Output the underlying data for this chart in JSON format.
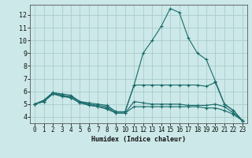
{
  "xlabel": "Humidex (Indice chaleur)",
  "xlim": [
    -0.5,
    23.5
  ],
  "ylim": [
    3.5,
    12.8
  ],
  "xticks": [
    0,
    1,
    2,
    3,
    4,
    5,
    6,
    7,
    8,
    9,
    10,
    11,
    12,
    13,
    14,
    15,
    16,
    17,
    18,
    19,
    20,
    21,
    22,
    23
  ],
  "yticks": [
    4,
    5,
    6,
    7,
    8,
    9,
    10,
    11,
    12
  ],
  "background_color": "#cce8e8",
  "grid_color": "#aacccc",
  "line_color": "#1a6b6b",
  "lines": [
    [
      5.0,
      5.3,
      5.9,
      5.8,
      5.7,
      5.2,
      5.1,
      5.0,
      4.9,
      4.4,
      4.4,
      6.5,
      9.0,
      10.0,
      11.1,
      12.5,
      12.2,
      10.2,
      9.0,
      8.5,
      6.8,
      5.0,
      4.5,
      3.7
    ],
    [
      5.0,
      5.3,
      5.9,
      5.7,
      5.6,
      5.2,
      5.0,
      4.9,
      4.8,
      4.4,
      4.4,
      6.5,
      6.5,
      6.5,
      6.5,
      6.5,
      6.5,
      6.5,
      6.5,
      6.4,
      6.7,
      5.0,
      4.5,
      3.7
    ],
    [
      5.0,
      5.2,
      5.8,
      5.7,
      5.5,
      5.1,
      5.0,
      4.8,
      4.7,
      4.3,
      4.3,
      5.2,
      5.1,
      5.0,
      5.0,
      5.0,
      5.0,
      4.9,
      4.9,
      4.9,
      5.0,
      4.8,
      4.3,
      3.7
    ],
    [
      5.0,
      5.2,
      5.8,
      5.6,
      5.5,
      5.1,
      4.9,
      4.8,
      4.6,
      4.3,
      4.3,
      4.8,
      4.8,
      4.8,
      4.8,
      4.8,
      4.8,
      4.8,
      4.8,
      4.7,
      4.7,
      4.5,
      4.2,
      3.7
    ]
  ]
}
